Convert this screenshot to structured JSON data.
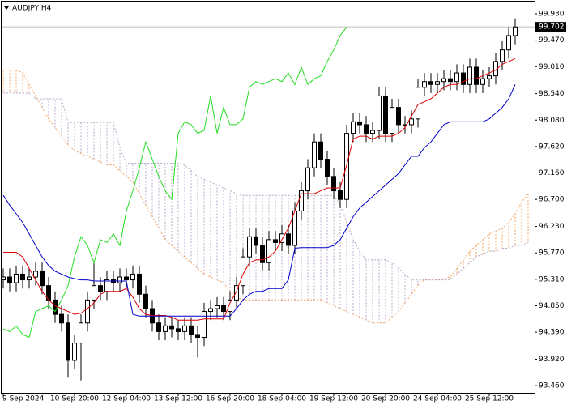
{
  "chart_data": {
    "type": "candlestick",
    "title": "AUDJPY,H4",
    "categories": [
      "9 Sep 2024",
      null,
      null,
      null,
      null,
      null,
      null,
      null,
      null,
      null,
      null,
      "10 Sep 20:00",
      null,
      null,
      null,
      null,
      null,
      null,
      null,
      "12 Sep 04:00",
      null,
      null,
      null,
      null,
      null,
      null,
      null,
      "13 Sep 12:00",
      null,
      null,
      null,
      null,
      null,
      null,
      null,
      "16 Sep 20:00",
      null,
      null,
      null,
      null,
      null,
      null,
      null,
      "18 Sep 04:00",
      null,
      null,
      null,
      null,
      null,
      null,
      null,
      "19 Sep 12:00",
      null,
      null,
      null,
      null,
      null,
      null,
      null,
      "20 Sep 20:00",
      null,
      null,
      null,
      null,
      null,
      null,
      null,
      "24 Sep 04:00",
      null,
      null,
      null,
      null,
      null,
      null,
      null,
      "25 Sep 12:00",
      null,
      null,
      null,
      null,
      null,
      null
    ],
    "ohlc": {
      "bull_color": "#ffffff",
      "bear_color": "#000000",
      "edge_color": "#000000",
      "open": [
        95.3,
        95.35,
        95.25,
        95.4,
        95.3,
        95.35,
        95.45,
        95.2,
        94.95,
        94.7,
        94.55,
        93.9,
        94.2,
        94.55,
        94.95,
        95.2,
        95.1,
        95.3,
        95.25,
        95.35,
        95.3,
        95.4,
        95.05,
        94.8,
        94.55,
        94.4,
        94.5,
        94.45,
        94.4,
        94.5,
        94.35,
        94.3,
        94.75,
        94.8,
        94.85,
        94.75,
        94.95,
        95.2,
        95.7,
        96.05,
        95.9,
        95.6,
        96.0,
        95.95,
        96.1,
        95.9,
        96.5,
        96.85,
        97.25,
        97.7,
        97.4,
        97.1,
        96.85,
        96.7,
        97.85,
        98.05,
        98.0,
        97.85,
        97.9,
        98.5,
        97.85,
        98.3,
        98.0,
        98.0,
        98.1,
        98.65,
        98.75,
        98.7,
        98.75,
        98.8,
        98.75,
        98.9,
        98.7,
        99.0,
        98.7,
        98.8,
        98.85,
        99.1,
        99.3,
        99.55,
        null,
        null
      ],
      "high": [
        95.5,
        95.5,
        95.55,
        95.55,
        95.5,
        95.6,
        95.6,
        95.35,
        95.1,
        94.85,
        94.7,
        94.35,
        94.7,
        95.1,
        95.6,
        95.35,
        95.45,
        95.45,
        95.5,
        95.5,
        95.55,
        95.55,
        95.2,
        94.95,
        94.7,
        94.65,
        94.65,
        94.6,
        94.65,
        94.65,
        94.5,
        94.9,
        94.95,
        95.0,
        95.0,
        95.1,
        95.35,
        95.85,
        96.2,
        96.2,
        96.05,
        96.15,
        96.15,
        96.25,
        96.25,
        96.65,
        97.0,
        97.4,
        97.85,
        97.85,
        97.55,
        97.25,
        97.0,
        98.0,
        98.2,
        98.2,
        98.15,
        98.05,
        98.65,
        98.65,
        98.45,
        98.45,
        98.15,
        98.25,
        98.8,
        98.9,
        98.9,
        98.9,
        98.95,
        98.95,
        99.05,
        99.05,
        99.15,
        99.15,
        98.95,
        99.0,
        99.25,
        99.45,
        99.7,
        99.85,
        null,
        null
      ],
      "low": [
        95.15,
        95.1,
        95.1,
        95.15,
        95.15,
        95.2,
        95.05,
        94.8,
        94.55,
        94.4,
        93.6,
        93.75,
        93.55,
        94.4,
        94.8,
        94.95,
        94.95,
        95.1,
        95.1,
        95.15,
        95.15,
        94.9,
        94.65,
        94.4,
        94.25,
        94.25,
        94.3,
        94.25,
        94.25,
        94.2,
        93.95,
        94.15,
        94.6,
        94.65,
        94.6,
        94.6,
        94.8,
        95.05,
        95.55,
        95.75,
        95.45,
        95.45,
        95.8,
        95.8,
        95.75,
        95.75,
        96.35,
        96.7,
        97.1,
        97.25,
        96.95,
        96.7,
        96.55,
        96.55,
        97.7,
        97.85,
        97.7,
        97.7,
        97.75,
        97.7,
        97.7,
        97.85,
        97.85,
        97.85,
        97.95,
        98.5,
        98.55,
        98.55,
        98.6,
        98.6,
        98.6,
        98.55,
        98.55,
        98.55,
        98.55,
        98.65,
        98.7,
        98.95,
        99.15,
        99.4,
        null,
        null
      ],
      "close": [
        95.35,
        95.25,
        95.4,
        95.3,
        95.35,
        95.45,
        95.2,
        94.95,
        94.7,
        94.55,
        93.9,
        94.2,
        94.55,
        94.95,
        95.2,
        95.1,
        95.3,
        95.25,
        95.35,
        95.3,
        95.4,
        95.05,
        94.8,
        94.55,
        94.4,
        94.5,
        94.45,
        94.4,
        94.5,
        94.35,
        94.3,
        94.75,
        94.8,
        94.85,
        94.75,
        94.95,
        95.2,
        95.7,
        96.05,
        95.9,
        95.6,
        96.0,
        95.95,
        96.1,
        95.9,
        96.5,
        96.85,
        97.25,
        97.7,
        97.4,
        97.1,
        96.85,
        96.7,
        97.85,
        98.05,
        98.0,
        97.85,
        97.9,
        98.5,
        97.85,
        98.3,
        98.0,
        98.0,
        98.1,
        98.65,
        98.75,
        98.7,
        98.75,
        98.8,
        98.75,
        98.9,
        98.7,
        99.0,
        98.7,
        98.8,
        98.85,
        99.1,
        99.3,
        99.55,
        99.7,
        null,
        null
      ]
    },
    "lines": [
      {
        "color": "#dd0000",
        "values": [
          95.78,
          95.78,
          95.78,
          95.7,
          95.5,
          95.3,
          95.1,
          94.95,
          94.85,
          94.8,
          94.75,
          94.7,
          94.72,
          94.8,
          94.9,
          95.05,
          95.1,
          95.1,
          95.1,
          95.15,
          95.0,
          94.8,
          94.7,
          94.68,
          94.68,
          94.68,
          94.65,
          94.6,
          94.6,
          94.6,
          94.6,
          94.62,
          94.62,
          94.62,
          94.62,
          94.9,
          95.1,
          95.4,
          95.6,
          95.65,
          95.65,
          95.7,
          95.8,
          96.0,
          96.2,
          96.5,
          96.8,
          96.8,
          96.8,
          96.85,
          96.9,
          96.9,
          96.9,
          97.3,
          97.75,
          97.8,
          97.8,
          97.75,
          97.8,
          97.8,
          97.8,
          97.85,
          97.95,
          98.15,
          98.35,
          98.4,
          98.45,
          98.55,
          98.65,
          98.7,
          98.7,
          98.75,
          98.8,
          98.8,
          98.85,
          98.9,
          98.95,
          99.05,
          99.1,
          99.15,
          null,
          null
        ]
      },
      {
        "color": "#0000cc",
        "values": [
          96.77,
          96.6,
          96.45,
          96.3,
          96.1,
          95.9,
          95.7,
          95.55,
          95.45,
          95.4,
          95.35,
          95.32,
          95.3,
          95.3,
          95.28,
          95.28,
          95.28,
          95.28,
          95.28,
          95.28,
          94.7,
          94.67,
          94.67,
          94.67,
          94.67,
          94.67,
          94.67,
          94.67,
          94.67,
          94.67,
          94.67,
          94.67,
          94.67,
          94.67,
          94.67,
          94.67,
          94.8,
          94.95,
          95.05,
          95.1,
          95.1,
          95.15,
          95.15,
          95.15,
          95.3,
          95.85,
          95.86,
          95.86,
          95.86,
          95.86,
          95.86,
          95.9,
          96.0,
          96.2,
          96.4,
          96.55,
          96.65,
          96.75,
          96.85,
          96.95,
          97.05,
          97.15,
          97.3,
          97.45,
          97.45,
          97.6,
          97.7,
          97.85,
          98.0,
          98.05,
          98.05,
          98.05,
          98.05,
          98.05,
          98.05,
          98.1,
          98.2,
          98.3,
          98.45,
          98.7,
          null,
          null
        ]
      },
      {
        "color": "#22dd22",
        "values": [
          94.45,
          94.4,
          94.5,
          94.35,
          94.3,
          94.75,
          94.8,
          94.85,
          94.75,
          94.95,
          95.2,
          95.7,
          96.05,
          95.9,
          95.6,
          96.0,
          95.95,
          96.1,
          95.9,
          96.5,
          96.85,
          97.25,
          97.7,
          97.4,
          97.1,
          96.85,
          96.7,
          97.85,
          98.05,
          98.0,
          97.85,
          97.9,
          98.5,
          97.85,
          98.3,
          98.0,
          98.0,
          98.1,
          98.65,
          98.75,
          98.7,
          98.75,
          98.8,
          98.75,
          98.9,
          98.7,
          99.0,
          98.7,
          98.8,
          98.85,
          99.1,
          99.3,
          99.55,
          99.7,
          null,
          null,
          null,
          null,
          null,
          null,
          null,
          null,
          null,
          null,
          null,
          null,
          null,
          null,
          null,
          null,
          null,
          null,
          null,
          null,
          null,
          null,
          null,
          null,
          null,
          null,
          null,
          null
        ]
      }
    ],
    "cloud": {
      "span_a": {
        "color": "#f4a460",
        "values": [
          98.95,
          98.95,
          98.95,
          98.9,
          98.7,
          98.5,
          98.3,
          98.1,
          97.95,
          97.8,
          97.65,
          97.55,
          97.5,
          97.45,
          97.4,
          97.35,
          97.3,
          97.3,
          97.2,
          97.1,
          97.0,
          96.8,
          96.6,
          96.4,
          96.2,
          96.0,
          95.9,
          95.8,
          95.7,
          95.6,
          95.5,
          95.4,
          95.35,
          95.3,
          95.25,
          95.1,
          95.0,
          94.95,
          94.95,
          94.95,
          94.95,
          94.95,
          94.95,
          94.95,
          94.95,
          94.95,
          94.95,
          94.95,
          94.95,
          94.95,
          94.9,
          94.85,
          94.8,
          94.75,
          94.7,
          94.65,
          94.6,
          94.55,
          94.55,
          94.55,
          94.65,
          94.75,
          94.9,
          95.05,
          95.2,
          95.3,
          95.3,
          95.3,
          95.32,
          95.35,
          95.5,
          95.65,
          95.8,
          95.9,
          96.0,
          96.1,
          96.15,
          96.2,
          96.3,
          96.45,
          96.65,
          96.8
        ]
      },
      "span_b": {
        "color": "#b8a8c8",
        "values": [
          98.55,
          98.55,
          98.55,
          98.55,
          98.55,
          98.45,
          98.45,
          98.45,
          98.45,
          98.45,
          98.04,
          98.04,
          98.04,
          98.04,
          98.04,
          98.04,
          98.04,
          98.04,
          97.6,
          97.33,
          97.33,
          97.33,
          97.33,
          97.33,
          97.33,
          97.33,
          97.33,
          97.33,
          97.3,
          97.2,
          97.1,
          97.05,
          97.0,
          96.95,
          96.9,
          96.85,
          96.8,
          96.77,
          96.77,
          96.77,
          96.77,
          96.77,
          96.77,
          96.77,
          96.77,
          96.77,
          96.77,
          96.77,
          96.77,
          96.77,
          96.77,
          96.77,
          96.6,
          96.3,
          96.0,
          95.8,
          95.65,
          95.65,
          95.65,
          95.65,
          95.6,
          95.5,
          95.4,
          95.3,
          95.3,
          95.3,
          95.3,
          95.3,
          95.3,
          95.3,
          95.4,
          95.5,
          95.6,
          95.7,
          95.75,
          95.8,
          95.8,
          95.85,
          95.85,
          95.9,
          95.9,
          95.95
        ]
      }
    },
    "last_price": 99.702,
    "ylim": [
      93.335,
      100.141
    ],
    "yticks": [
      {
        "value": 99.93,
        "label": "99.930"
      },
      {
        "value": 99.47,
        "label": "99.470"
      },
      {
        "value": 99.01,
        "label": "99.010"
      },
      {
        "value": 98.54,
        "label": "98.540"
      },
      {
        "value": 98.08,
        "label": "98.080"
      },
      {
        "value": 97.62,
        "label": "97.620"
      },
      {
        "value": 97.16,
        "label": "97.160"
      },
      {
        "value": 96.7,
        "label": "96.700"
      },
      {
        "value": 96.23,
        "label": "96.230"
      },
      {
        "value": 95.77,
        "label": "95.770"
      },
      {
        "value": 95.31,
        "label": "95.310"
      },
      {
        "value": 94.85,
        "label": "94.850"
      },
      {
        "value": 94.39,
        "label": "94.390"
      },
      {
        "value": 93.92,
        "label": "93.920"
      },
      {
        "value": 93.46,
        "label": "93.460"
      }
    ]
  }
}
